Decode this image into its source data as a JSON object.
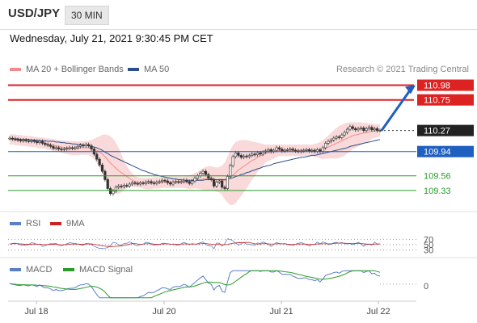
{
  "header": {
    "symbol": "USD/JPY",
    "timeframe": "30 MIN"
  },
  "datetime": "Wednesday, July 21, 2021 9:30:45 PM CET",
  "legend_main": [
    {
      "label": "MA 20 + Bollinger Bands",
      "color": "#f28b8b"
    },
    {
      "label": "MA 50",
      "color": "#2c4f8a"
    }
  ],
  "credit": "Research © 2021 Trading Central",
  "rsi_legend": [
    {
      "label": "RSI",
      "color": "#5b7fc7"
    },
    {
      "label": "9MA",
      "color": "#cc2222"
    }
  ],
  "macd_legend": [
    {
      "label": "MACD",
      "color": "#5b7fc7"
    },
    {
      "label": "MACD Signal",
      "color": "#2a9a2a"
    }
  ],
  "colors": {
    "resistance": "#dd2222",
    "support_blue": "#1f5fbf",
    "support_green": "#2a9a2a",
    "current": "#222222",
    "band": "#f7c9c9",
    "arrow": "#1f5fbf"
  },
  "chart_data": {
    "type": "candlestick",
    "ylim": [
      109.05,
      111.05
    ],
    "x_ticks": [
      "Jul 18",
      "Jul 20",
      "Jul 21",
      "Jul 22"
    ],
    "closes": [
      110.15,
      110.14,
      110.13,
      110.12,
      110.11,
      110.12,
      110.11,
      110.1,
      110.11,
      110.1,
      110.08,
      110.1,
      110.07,
      110.05,
      110.04,
      110.02,
      109.99,
      110.0,
      109.98,
      109.97,
      109.98,
      109.99,
      110.0,
      109.99,
      110.0,
      110.02,
      110.04,
      110.03,
      110.05,
      110.03,
      109.98,
      109.9,
      109.82,
      109.73,
      109.63,
      109.5,
      109.36,
      109.28,
      109.32,
      109.38,
      109.4,
      109.39,
      109.41,
      109.4,
      109.43,
      109.45,
      109.44,
      109.43,
      109.45,
      109.44,
      109.46,
      109.47,
      109.45,
      109.44,
      109.46,
      109.47,
      109.49,
      109.48,
      109.45,
      109.43,
      109.46,
      109.47,
      109.46,
      109.47,
      109.49,
      109.47,
      109.44,
      109.48,
      109.52,
      109.56,
      109.6,
      109.63,
      109.58,
      109.52,
      109.5,
      109.4,
      109.46,
      109.48,
      109.38,
      109.36,
      109.55,
      109.72,
      109.86,
      109.92,
      109.88,
      109.85,
      109.87,
      109.86,
      109.88,
      109.9,
      109.89,
      109.92,
      109.9,
      109.93,
      109.95,
      109.97,
      109.94,
      109.96,
      110.0,
      109.98,
      109.95,
      109.96,
      109.97,
      109.98,
      109.96,
      109.95,
      109.94,
      109.95,
      109.96,
      109.97,
      109.95,
      109.96,
      109.94,
      109.97,
      109.94,
      110.0,
      110.07,
      110.1,
      110.12,
      110.15,
      110.17,
      110.16,
      110.2,
      110.24,
      110.29,
      110.33,
      110.3,
      110.28,
      110.3,
      110.31,
      110.27,
      110.3,
      110.32,
      110.28,
      110.3,
      110.27,
      110.27
    ],
    "bollinger": {
      "ma20": [
        110.13,
        110.13,
        110.12,
        110.12,
        110.11,
        110.11,
        110.11,
        110.1,
        110.1,
        110.1,
        110.09,
        110.09,
        110.08,
        110.07,
        110.06,
        110.05,
        110.04,
        110.03,
        110.02,
        110.01,
        110.0,
        110.0,
        109.99,
        109.99,
        109.99,
        109.99,
        110.0,
        110.0,
        110.0,
        110.0,
        109.99,
        109.98,
        109.96,
        109.93,
        109.9,
        109.86,
        109.81,
        109.76,
        109.72,
        109.68,
        109.64,
        109.61,
        109.58,
        109.55,
        109.52,
        109.49,
        109.47,
        109.46,
        109.45,
        109.44,
        109.44,
        109.44,
        109.44,
        109.45,
        109.45,
        109.45,
        109.46,
        109.46,
        109.46,
        109.46,
        109.46,
        109.46,
        109.46,
        109.46,
        109.46,
        109.46,
        109.46,
        109.47,
        109.48,
        109.49,
        109.5,
        109.51,
        109.52,
        109.52,
        109.52,
        109.51,
        109.5,
        109.5,
        109.49,
        109.48,
        109.5,
        109.53,
        109.57,
        109.61,
        109.65,
        109.68,
        109.71,
        109.74,
        109.77,
        109.8,
        109.82,
        109.85,
        109.87,
        109.89,
        109.91,
        109.92,
        109.93,
        109.94,
        109.95,
        109.96,
        109.96,
        109.96,
        109.96,
        109.96,
        109.96,
        109.96,
        109.96,
        109.96,
        109.96,
        109.96,
        109.96,
        109.96,
        109.96,
        109.96,
        109.96,
        109.97,
        109.99,
        110.01,
        110.03,
        110.05,
        110.07,
        110.09,
        110.11,
        110.13,
        110.15,
        110.17,
        110.19,
        110.2,
        110.21,
        110.22,
        110.23,
        110.24,
        110.25,
        110.26,
        110.26,
        110.27,
        110.27
      ],
      "upper": [
        110.21,
        110.21,
        110.21,
        110.2,
        110.2,
        110.19,
        110.19,
        110.18,
        110.18,
        110.17,
        110.17,
        110.16,
        110.16,
        110.15,
        110.15,
        110.14,
        110.14,
        110.13,
        110.12,
        110.12,
        110.11,
        110.11,
        110.11,
        110.1,
        110.1,
        110.1,
        110.1,
        110.1,
        110.1,
        110.11,
        110.12,
        110.14,
        110.16,
        110.18,
        110.2,
        110.21,
        110.2,
        110.18,
        110.14,
        110.08,
        110.0,
        109.9,
        109.8,
        109.72,
        109.65,
        109.6,
        109.56,
        109.54,
        109.53,
        109.53,
        109.53,
        109.53,
        109.53,
        109.54,
        109.54,
        109.54,
        109.55,
        109.55,
        109.55,
        109.55,
        109.55,
        109.55,
        109.55,
        109.55,
        109.55,
        109.56,
        109.57,
        109.58,
        109.6,
        109.62,
        109.65,
        109.68,
        109.7,
        109.71,
        109.71,
        109.7,
        109.69,
        109.7,
        109.72,
        109.77,
        109.86,
        109.96,
        110.04,
        110.09,
        110.11,
        110.12,
        110.12,
        110.12,
        110.11,
        110.1,
        110.09,
        110.08,
        110.07,
        110.06,
        110.05,
        110.05,
        110.05,
        110.05,
        110.05,
        110.05,
        110.05,
        110.05,
        110.05,
        110.05,
        110.05,
        110.05,
        110.05,
        110.05,
        110.05,
        110.05,
        110.05,
        110.05,
        110.06,
        110.07,
        110.09,
        110.12,
        110.15,
        110.19,
        110.23,
        110.27,
        110.31,
        110.34,
        110.36,
        110.38,
        110.39,
        110.4,
        110.4,
        110.4,
        110.4,
        110.4,
        110.39,
        110.39,
        110.38,
        110.38,
        110.37,
        110.37,
        110.37
      ],
      "lower": [
        110.05,
        110.05,
        110.04,
        110.04,
        110.03,
        110.03,
        110.02,
        110.02,
        110.01,
        110.01,
        110.0,
        109.99,
        109.99,
        109.98,
        109.97,
        109.96,
        109.95,
        109.94,
        109.93,
        109.92,
        109.91,
        109.9,
        109.89,
        109.88,
        109.88,
        109.88,
        109.89,
        109.89,
        109.89,
        109.89,
        109.86,
        109.82,
        109.76,
        109.68,
        109.6,
        109.51,
        109.42,
        109.34,
        109.3,
        109.28,
        109.28,
        109.3,
        109.34,
        109.37,
        109.39,
        109.39,
        109.38,
        109.38,
        109.37,
        109.36,
        109.35,
        109.35,
        109.35,
        109.36,
        109.36,
        109.36,
        109.37,
        109.37,
        109.37,
        109.37,
        109.37,
        109.37,
        109.37,
        109.37,
        109.37,
        109.36,
        109.35,
        109.36,
        109.36,
        109.36,
        109.35,
        109.34,
        109.34,
        109.33,
        109.33,
        109.32,
        109.31,
        109.3,
        109.26,
        109.19,
        109.14,
        109.1,
        109.1,
        109.13,
        109.19,
        109.24,
        109.3,
        109.36,
        109.43,
        109.5,
        109.55,
        109.62,
        109.67,
        109.72,
        109.77,
        109.79,
        109.81,
        109.83,
        109.85,
        109.87,
        109.87,
        109.87,
        109.87,
        109.87,
        109.87,
        109.87,
        109.87,
        109.87,
        109.87,
        109.87,
        109.87,
        109.87,
        109.86,
        109.85,
        109.83,
        109.82,
        109.83,
        109.83,
        109.83,
        109.83,
        109.83,
        109.84,
        109.86,
        109.88,
        109.91,
        109.94,
        109.98,
        110.0,
        110.02,
        110.04,
        110.07,
        110.09,
        110.11,
        110.14,
        110.15,
        110.17,
        110.17
      ]
    },
    "ma50": [
      110.14,
      110.14,
      110.14,
      110.14,
      110.13,
      110.13,
      110.13,
      110.13,
      110.12,
      110.12,
      110.12,
      110.11,
      110.11,
      110.11,
      110.1,
      110.1,
      110.1,
      110.09,
      110.09,
      110.08,
      110.08,
      110.07,
      110.07,
      110.06,
      110.06,
      110.05,
      110.05,
      110.04,
      110.04,
      110.03,
      110.02,
      110.01,
      110.0,
      109.98,
      109.96,
      109.93,
      109.91,
      109.88,
      109.86,
      109.84,
      109.82,
      109.8,
      109.78,
      109.76,
      109.74,
      109.72,
      109.7,
      109.68,
      109.66,
      109.64,
      109.63,
      109.61,
      109.6,
      109.58,
      109.57,
      109.56,
      109.55,
      109.54,
      109.53,
      109.52,
      109.51,
      109.51,
      109.5,
      109.5,
      109.49,
      109.49,
      109.49,
      109.49,
      109.49,
      109.49,
      109.49,
      109.49,
      109.5,
      109.5,
      109.5,
      109.5,
      109.5,
      109.5,
      109.5,
      109.5,
      109.51,
      109.52,
      109.53,
      109.55,
      109.56,
      109.58,
      109.59,
      109.61,
      109.62,
      109.64,
      109.65,
      109.67,
      109.68,
      109.7,
      109.71,
      109.72,
      109.73,
      109.75,
      109.76,
      109.77,
      109.78,
      109.79,
      109.8,
      109.81,
      109.82,
      109.83,
      109.84,
      109.85,
      109.85,
      109.86,
      109.87,
      109.88,
      109.88,
      109.89,
      109.9,
      109.91,
      109.92,
      109.93,
      109.94,
      109.95,
      109.96,
      109.97,
      109.98,
      109.99,
      110.0,
      110.02,
      110.03,
      110.04,
      110.05,
      110.06,
      110.07,
      110.08,
      110.09,
      110.1,
      110.11,
      110.12,
      110.13
    ],
    "levels": [
      {
        "value": 110.98,
        "label": "110.98",
        "kind": "resistance"
      },
      {
        "value": 110.75,
        "label": "110.75",
        "kind": "resistance"
      },
      {
        "value": 110.27,
        "label": "110.27",
        "kind": "current"
      },
      {
        "value": 109.94,
        "label": "109.94",
        "kind": "pivot"
      },
      {
        "value": 109.56,
        "label": "109.56",
        "kind": "support"
      },
      {
        "value": 109.33,
        "label": "109.33",
        "kind": "support"
      }
    ],
    "arrow_target": 110.98,
    "rsi": {
      "levels": [
        {
          "value": 70,
          "label": "70"
        },
        {
          "value": 50,
          "label": "50"
        },
        {
          "value": 30,
          "label": "30"
        }
      ],
      "ylim": [
        20,
        80
      ]
    },
    "macd": {
      "zero_label": "0"
    }
  }
}
